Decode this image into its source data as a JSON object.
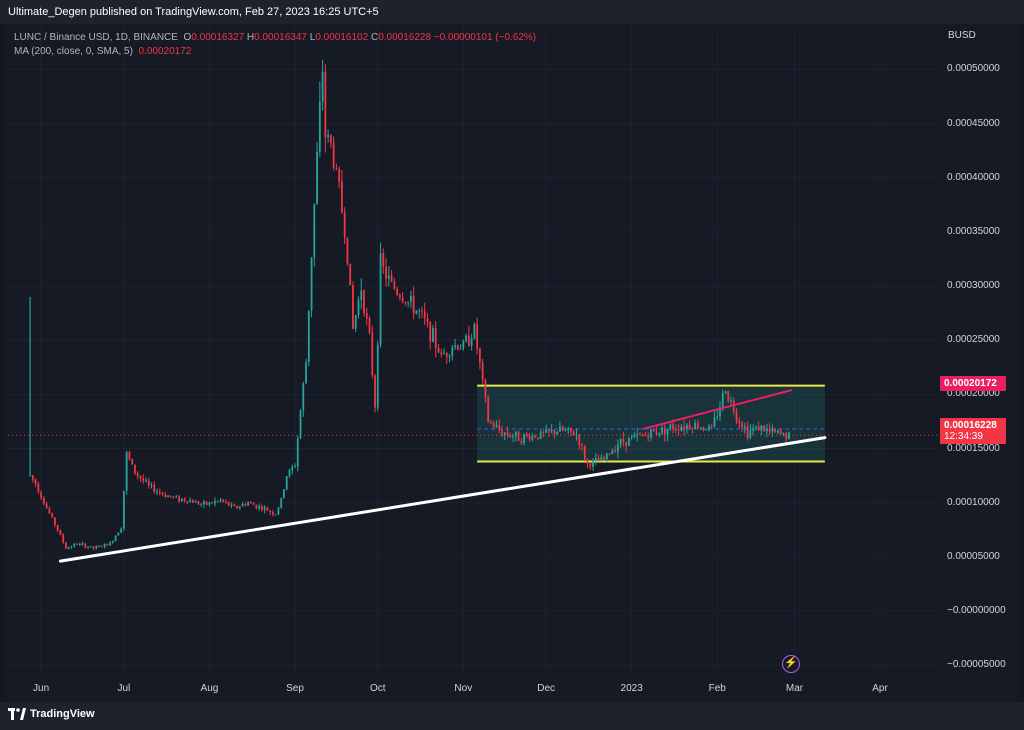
{
  "header": {
    "publisher_text": "Ultimate_Degen published on TradingView.com, Feb 27, 2023 16:25 UTC+5"
  },
  "legend": {
    "symbol": "LUNC / Binance USD, 1D, BINANCE",
    "o_key": "O",
    "o": "0.00016327",
    "h_key": "H",
    "h": "0.00016347",
    "l_key": "L",
    "l": "0.00016102",
    "c_key": "C",
    "c": "0.00016228",
    "change": "−0.00000101 (−0.62%)",
    "ma_label": "MA (200, close, 0, SMA, 5)",
    "ma_value": "0.00020172"
  },
  "price_axis": {
    "currency": "BUSD",
    "tags": {
      "ma": "0.00020172",
      "last": "0.00016228",
      "countdown": "12:34:39"
    }
  },
  "footer": {
    "brand": "TradingView"
  },
  "colors": {
    "up": "#26a69a",
    "down": "#f23645",
    "ma": "#e91e63",
    "channel": "#e6e84a",
    "trendline": "#ffffff",
    "background": "#161a25"
  },
  "chart_data": {
    "type": "candlestick",
    "symbol": "LUNC / Binance USD",
    "timeframe": "1D",
    "y_ticks": [
      "0.00050000",
      "0.00045000",
      "0.00040000",
      "0.00035000",
      "0.00030000",
      "0.00025000",
      "0.00020000",
      "0.00015000",
      "0.00010000",
      "0.00005000",
      "−0.00000000",
      "−0.00005000"
    ],
    "y_tick_values": [
      0.0005,
      0.00045,
      0.0004,
      0.00035,
      0.0003,
      0.00025,
      0.0002,
      0.00015,
      0.0001,
      5e-05,
      0,
      -5e-05
    ],
    "ylim": [
      -6e-05,
      0.00054
    ],
    "x_ticks": [
      {
        "label": "Jun",
        "date": "2022-06-01"
      },
      {
        "label": "Jul",
        "date": "2022-07-01"
      },
      {
        "label": "Aug",
        "date": "2022-08-01"
      },
      {
        "label": "Sep",
        "date": "2022-09-01"
      },
      {
        "label": "Oct",
        "date": "2022-10-01"
      },
      {
        "label": "Nov",
        "date": "2022-11-01"
      },
      {
        "label": "Dec",
        "date": "2022-12-01"
      },
      {
        "label": "2023",
        "date": "2023-01-01"
      },
      {
        "label": "Feb",
        "date": "2023-02-01"
      },
      {
        "label": "Mar",
        "date": "2023-03-01"
      },
      {
        "label": "Apr",
        "date": "2023-04-01"
      }
    ],
    "xlim": [
      "2022-05-20",
      "2023-04-22"
    ],
    "price_path": [
      [
        "2022-05-28",
        0.000125
      ],
      [
        "2022-05-30",
        0.000118
      ],
      [
        "2022-06-03",
        9.5e-05
      ],
      [
        "2022-06-07",
        7.5e-05
      ],
      [
        "2022-06-10",
        5.8e-05
      ],
      [
        "2022-06-14",
        6.2e-05
      ],
      [
        "2022-06-20",
        5.8e-05
      ],
      [
        "2022-06-26",
        6.2e-05
      ],
      [
        "2022-06-30",
        7.8e-05
      ],
      [
        "2022-07-02",
        0.000145
      ],
      [
        "2022-07-05",
        0.000128
      ],
      [
        "2022-07-10",
        0.000115
      ],
      [
        "2022-07-15",
        0.000108
      ],
      [
        "2022-07-20",
        0.000104
      ],
      [
        "2022-07-25",
        0.000102
      ],
      [
        "2022-07-30",
        9.8e-05
      ],
      [
        "2022-08-05",
        0.000102
      ],
      [
        "2022-08-10",
        9.5e-05
      ],
      [
        "2022-08-15",
        0.0001
      ],
      [
        "2022-08-20",
        9.5e-05
      ],
      [
        "2022-08-25",
        9e-05
      ],
      [
        "2022-08-27",
        0.000102
      ],
      [
        "2022-08-29",
        0.000125
      ],
      [
        "2022-09-01",
        0.000135
      ],
      [
        "2022-09-03",
        0.000185
      ],
      [
        "2022-09-05",
        0.00023
      ],
      [
        "2022-09-07",
        0.00033
      ],
      [
        "2022-09-09",
        0.00042
      ],
      [
        "2022-09-11",
        0.0005
      ],
      [
        "2022-09-12",
        0.00044
      ],
      [
        "2022-09-14",
        0.00043
      ],
      [
        "2022-09-17",
        0.00039
      ],
      [
        "2022-09-20",
        0.00033
      ],
      [
        "2022-09-22",
        0.00026
      ],
      [
        "2022-09-25",
        0.0003
      ],
      [
        "2022-09-28",
        0.00025
      ],
      [
        "2022-09-30",
        0.00019
      ],
      [
        "2022-10-02",
        0.00032
      ],
      [
        "2022-10-05",
        0.000305
      ],
      [
        "2022-10-08",
        0.000295
      ],
      [
        "2022-10-12",
        0.000285
      ],
      [
        "2022-10-16",
        0.000275
      ],
      [
        "2022-10-20",
        0.000258
      ],
      [
        "2022-10-24",
        0.000235
      ],
      [
        "2022-10-28",
        0.000245
      ],
      [
        "2022-11-01",
        0.000245
      ],
      [
        "2022-11-05",
        0.00026
      ],
      [
        "2022-11-08",
        0.00021
      ],
      [
        "2022-11-10",
        0.000175
      ],
      [
        "2022-11-15",
        0.000165
      ],
      [
        "2022-11-22",
        0.00016
      ],
      [
        "2022-11-30",
        0.000163
      ],
      [
        "2022-12-06",
        0.000167
      ],
      [
        "2022-12-12",
        0.000163
      ],
      [
        "2022-12-16",
        0.000135
      ],
      [
        "2022-12-22",
        0.00014
      ],
      [
        "2022-12-27",
        0.000155
      ],
      [
        "2023-01-02",
        0.00016
      ],
      [
        "2023-01-09",
        0.000165
      ],
      [
        "2023-01-16",
        0.00017
      ],
      [
        "2023-01-23",
        0.000172
      ],
      [
        "2023-01-30",
        0.000168
      ],
      [
        "2023-02-04",
        0.000205
      ],
      [
        "2023-02-08",
        0.00018
      ],
      [
        "2023-02-12",
        0.000165
      ],
      [
        "2023-02-16",
        0.00017
      ],
      [
        "2023-02-20",
        0.000165
      ],
      [
        "2023-02-24",
        0.000163
      ],
      [
        "2023-02-27",
        0.000162
      ]
    ],
    "spike_high": [
      "2022-05-28",
      0.00029
    ],
    "last_price": 0.00016228,
    "ma_200": 0.00020172,
    "ma_line": [
      [
        "2023-01-05",
        0.000168
      ],
      [
        "2023-02-28",
        0.000204
      ]
    ],
    "channel": {
      "start": "2022-11-06",
      "end": "2023-03-12",
      "top": 0.000208,
      "bottom": 0.000138,
      "mid": 0.000168
    },
    "trendline": [
      [
        "2022-06-08",
        4.6e-05
      ],
      [
        "2023-03-12",
        0.00016
      ]
    ]
  }
}
